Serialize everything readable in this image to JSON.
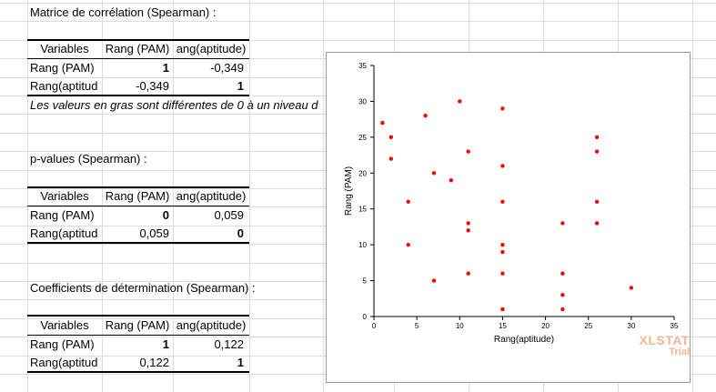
{
  "sections": {
    "correlation": {
      "title": "Matrice de corrélation (Spearman) :",
      "header": [
        "Variables",
        "Rang (PAM)",
        "ang(aptitude)"
      ],
      "rows": [
        {
          "label": "Rang (PAM)",
          "v1": "1",
          "v2": "-0,349"
        },
        {
          "label": "Rang(aptitud",
          "v1": "-0,349",
          "v2": "1"
        }
      ],
      "note": "Les valeurs en gras sont différentes de 0 à un niveau d"
    },
    "pvalues": {
      "title": "p-values (Spearman) :",
      "header": [
        "Variables",
        "Rang (PAM)",
        "ang(aptitude)"
      ],
      "rows": [
        {
          "label": "Rang (PAM)",
          "v1": "0",
          "v2": "0,059"
        },
        {
          "label": "Rang(aptitud",
          "v1": "0,059",
          "v2": "0"
        }
      ]
    },
    "determination": {
      "title": "Coefficients de détermination (Spearman) :",
      "header": [
        "Variables",
        "Rang (PAM)",
        "ang(aptitude)"
      ],
      "rows": [
        {
          "label": "Rang (PAM)",
          "v1": "1",
          "v2": "0,122"
        },
        {
          "label": "Rang(aptitud",
          "v1": "0,122",
          "v2": "1"
        }
      ]
    }
  },
  "watermark": {
    "name": "XLSTAT",
    "trial": "Trial",
    "color": "#f3b592"
  },
  "chart_data": {
    "type": "scatter",
    "xlabel": "Rang(aptitude)",
    "ylabel": "Rang (PAM)",
    "xlim": [
      0,
      35
    ],
    "ylim": [
      0,
      35
    ],
    "xticks": [
      0,
      5,
      10,
      15,
      20,
      25,
      30,
      35
    ],
    "yticks": [
      0,
      5,
      10,
      15,
      20,
      25,
      30,
      35
    ],
    "grid": false,
    "marker_color": "#ff0000",
    "points": [
      [
        1,
        27
      ],
      [
        2,
        25
      ],
      [
        2,
        22
      ],
      [
        4,
        16
      ],
      [
        4,
        10
      ],
      [
        6,
        28
      ],
      [
        7,
        20
      ],
      [
        7,
        5
      ],
      [
        9,
        19
      ],
      [
        10,
        30
      ],
      [
        11,
        23
      ],
      [
        11,
        13
      ],
      [
        11,
        12
      ],
      [
        11,
        6
      ],
      [
        15,
        29
      ],
      [
        15,
        21
      ],
      [
        15,
        16
      ],
      [
        15,
        10
      ],
      [
        15,
        9
      ],
      [
        15,
        6
      ],
      [
        15,
        1
      ],
      [
        22,
        13
      ],
      [
        22,
        6
      ],
      [
        22,
        3
      ],
      [
        22,
        1
      ],
      [
        26,
        25
      ],
      [
        26,
        23
      ],
      [
        26,
        16
      ],
      [
        26,
        13
      ],
      [
        30,
        4
      ]
    ]
  }
}
